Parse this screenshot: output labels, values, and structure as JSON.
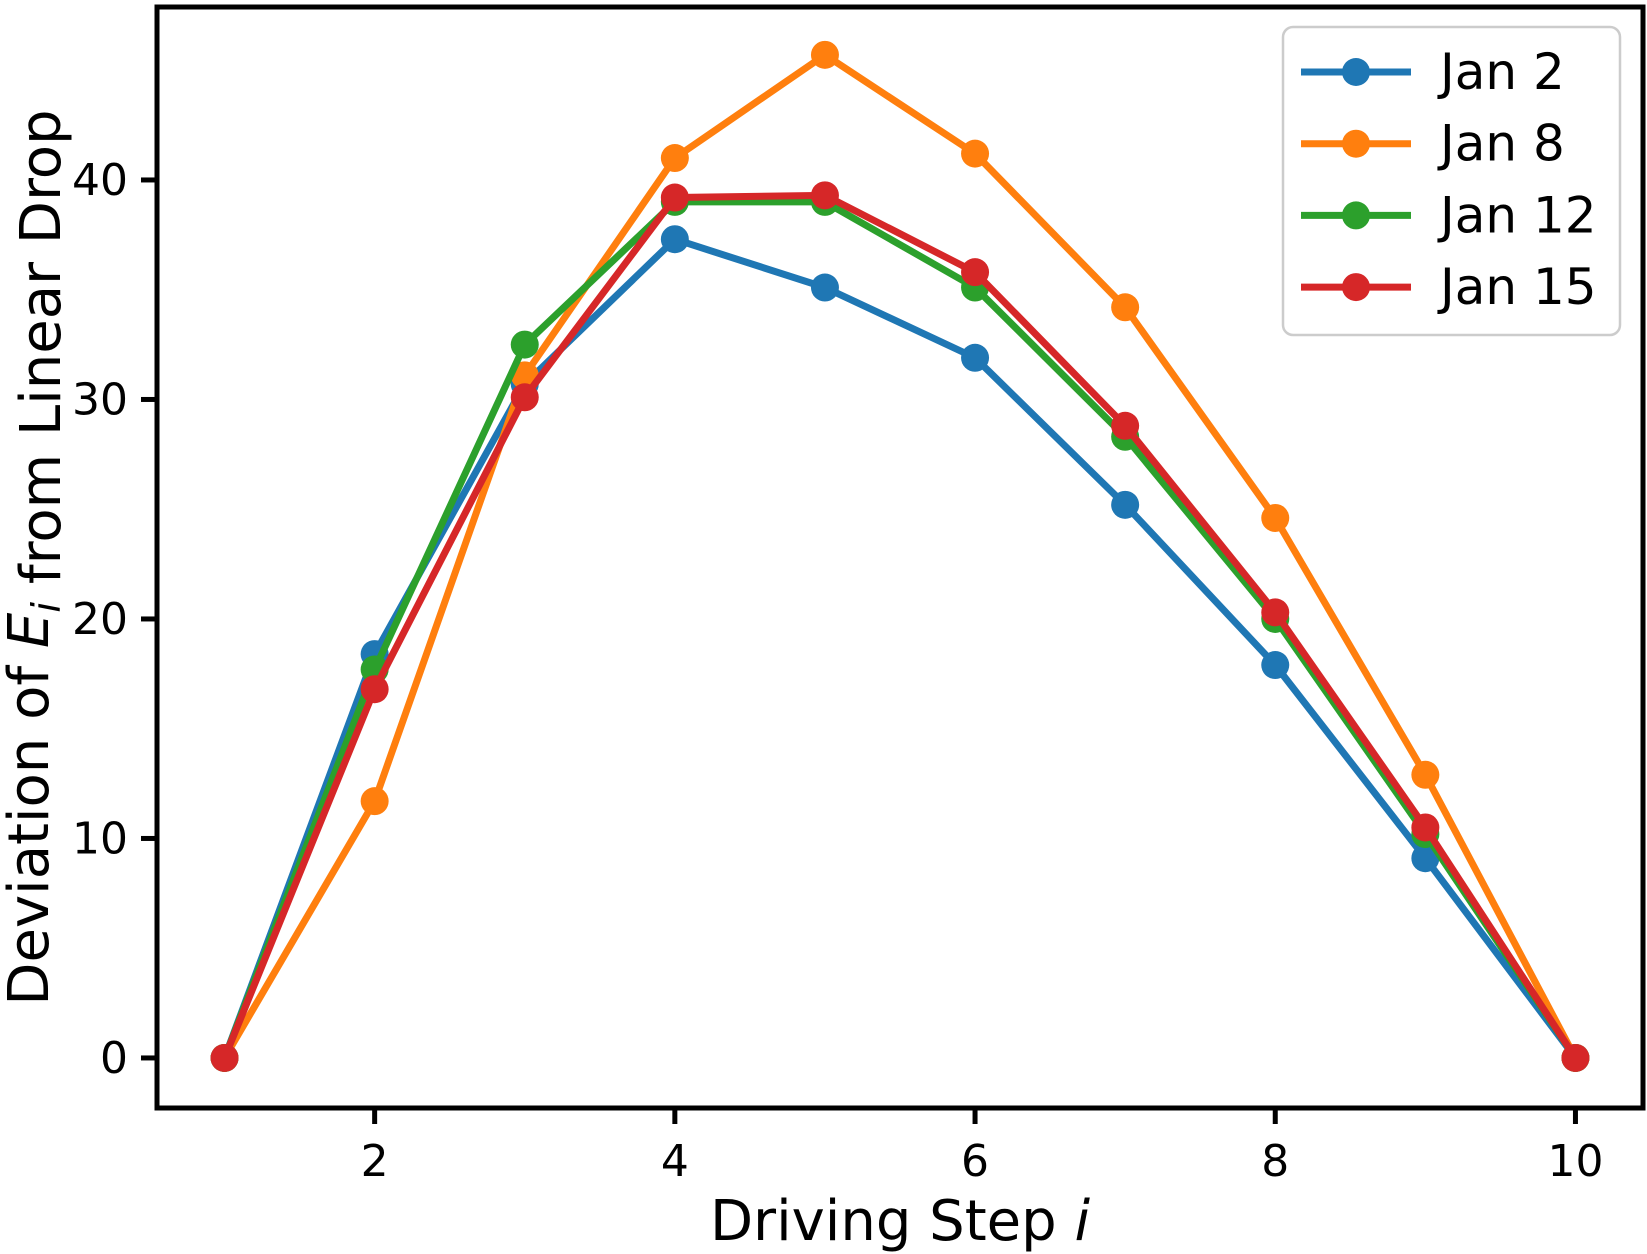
{
  "figure": {
    "background_color": "#ffffff",
    "frame_color": "#000000"
  },
  "chart_data": {
    "type": "line",
    "title": "",
    "xlabel_plain": "Driving Step i",
    "xlabel_parts": [
      {
        "text": "Driving Step ",
        "style": "normal"
      },
      {
        "text": "i",
        "style": "italic"
      }
    ],
    "ylabel_plain": "Deviation of Ei from Linear Drop",
    "ylabel_parts": [
      {
        "text": "Deviation of ",
        "style": "normal"
      },
      {
        "text": "E",
        "style": "italic"
      },
      {
        "text": "i",
        "style": "italic-subscript"
      },
      {
        "text": " from Linear Drop",
        "style": "normal"
      }
    ],
    "x": [
      1,
      2,
      3,
      4,
      5,
      6,
      7,
      8,
      9,
      10
    ],
    "series": [
      {
        "name": "Jan 2",
        "color": "#1f77b4",
        "values": [
          0,
          18.4,
          30.7,
          37.3,
          35.1,
          31.9,
          25.2,
          17.9,
          9.1,
          0
        ]
      },
      {
        "name": "Jan 8",
        "color": "#ff7f0e",
        "values": [
          0,
          11.7,
          31.1,
          41.0,
          45.7,
          41.2,
          34.2,
          24.6,
          12.9,
          0
        ]
      },
      {
        "name": "Jan 12",
        "color": "#2ca02c",
        "values": [
          0,
          17.7,
          32.5,
          39.0,
          39.0,
          35.1,
          28.3,
          20.0,
          10.2,
          0
        ]
      },
      {
        "name": "Jan 15",
        "color": "#d62728",
        "values": [
          0,
          16.8,
          30.1,
          39.2,
          39.3,
          35.8,
          28.8,
          20.3,
          10.5,
          0
        ]
      }
    ],
    "xticks": [
      "2",
      "4",
      "6",
      "8",
      "10"
    ],
    "xtick_values": [
      2,
      4,
      6,
      8,
      10
    ],
    "yticks": [
      "0",
      "10",
      "20",
      "30",
      "40"
    ],
    "ytick_values": [
      0,
      10,
      20,
      30,
      40
    ],
    "xlim": [
      0.55,
      10.45
    ],
    "ylim": [
      -2.28,
      47.88
    ],
    "grid": false,
    "marker": "circle",
    "legend": {
      "position": "upper-right",
      "border_color": "#cccccc",
      "background_color": "#ffffff",
      "entries": [
        "Jan 2",
        "Jan 8",
        "Jan 12",
        "Jan 15"
      ]
    }
  }
}
